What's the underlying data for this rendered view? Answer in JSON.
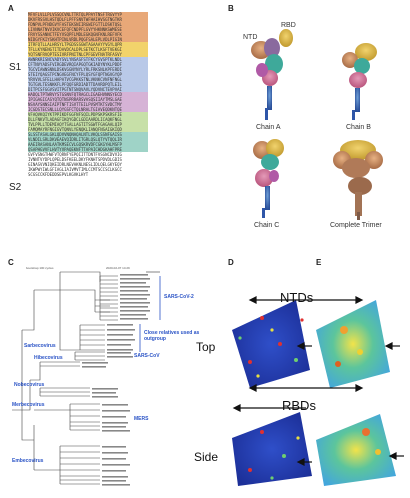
{
  "panels": {
    "a": "A",
    "b": "B",
    "c": "C",
    "d": "D",
    "e": "E"
  },
  "panel_a": {
    "segments": [
      "S1",
      "S2"
    ],
    "sequence_lines": [
      "MFVFLVLLPLVSSQCVNLTTRTQLPPAYTNSFTRGVYYP",
      "DKVFRSSVLHSTQDLFLPFFSNVTWFHAIHVSGTNGTKR",
      "FDNPVLPFNDGVYFASTEKSNIIRGWIFGTTLDSKTQSL",
      "LIVNNATNVVIKVCEFQFCNDPFLGVYYHKNNKSWMESE",
      "FRVYSSANNCTFEYVSQPFLMDLEGKQGNFKNLREFVFK",
      "NIDGYFKIYSKHTPINLVRDLPQGFSALEPLVDLPIGIN",
      "ITRFQTLLALHRSYLTPGDSSSGWTAGAAAYYVGYLQPR",
      "TFLLKYNENGTITDAVDCALDPLSETKCTLKSFTVEKGI",
      "YQTSNFRVQPTESIVRFPNITNLCPFGEVFNATRFASVY",
      "AWNRKRISNCVADYSVLYNSASFSTFKCYGVSPTKLNDL",
      "CFTNVYADSFVIRGDEVRQIAPGQTGKIADYNYKLPDDF",
      "TGCVIAWNSNNLDSKVGGNYNYLYRLFRKSNLKPFERDI",
      "STEIYQAGSTPCNGVEGFNCYFPLQSYGFQPTNGVGYQP",
      "YRVVVLSFELLHAPATVCGPKKSTNLVKNKCVNFNFNGL",
      "TGTGVLTESNKKFLPFQQFGRDIADTTDAVRDPQTLEIL",
      "DITPCSFGGVSVITPGTNTSNQVAVLYQDVNCTEVPVAI",
      "HADQLTPTWRVYSTGSNVFQTRAGCLIGAEHVNNSYECD",
      "IPIGAGICASYQTQTNSPRRARSVASQSIIAYTMSLGAE",
      "NSVAYSNNSIAIPTNFTISVTTEILPVSMTKTSVDCTMY",
      "ICGDSTECSNLLLQYGSFCTQLNRALTGIAVEQDKNTQE",
      "VFAQVKQIYKTPPIKDFGGFNFSQILPDPSKPSKRSFIE",
      "DLLFNKVTLADAGFIKQYGDCLGDIAARDLICAQKFNGL",
      "TVLPPLLTDEMIAQYTSALLAGTITSGWTFGAGAALQIP",
      "FAMQMAYRFNGIGVTQNVLYENQKLIANQFNSAIGKIQD",
      "SLSSTASALGKLQDVVNQNAQALNTLVKQLSSNFGAISS",
      "VLNDILSRLDKVEAEVQIDRLITGRLQSLQTYVTQQLIR",
      "AAEIRASANLAATKMSECVLGQSKRVDFCGKGYHLMSFP",
      "QSAPHGVVFLHVTYVPAQEKNFTTAPAICHDGKAHFPRE",
      "GVFVSNGTHWFVTQRNFYEPQIITTDNTFVSGNCDVVIG",
      "IVNNTVYDPLQPELDSFKEELDKYFKNHTSPDVDLGDIS",
      "GINASVVNIQKEIDRLNEVAKNLNESLIDLQELGKYEQY",
      "IKWPWYIWLGFIAGLIAIVMVTIMLCCMTSCCSCLKGCC",
      "SCGSCCKFDEDDSEPVLKGVKLHYT"
    ],
    "colors": {
      "ntd": "#e8a878",
      "rbd": "#f2d36b",
      "sd": "#b9c9e8",
      "s2a": "#c7e0a8",
      "s2b": "#d6b3d6",
      "hr": "#9fd3c7"
    }
  },
  "panel_b": {
    "labels": {
      "ntd": "NTD",
      "rbd": "RBD",
      "chain_a": "Chain A",
      "chain_b": "Chain B",
      "chain_c": "Chain C",
      "trimer": "Complete Trimer"
    }
  },
  "panel_c": {
    "header_left": "bootstrap 100 cycles",
    "header_right": "2020-02-07 14:29",
    "clades": [
      {
        "name": "SARS-CoV-2",
        "color": "#2a53c6"
      },
      {
        "name": "Close relatives used as outgroup",
        "color": "#2a53c6"
      },
      {
        "name": "SARS-CoV",
        "color": "#2a53c6"
      },
      {
        "name": "Sarbecovirus",
        "color": "#2a53c6"
      },
      {
        "name": "Hibecovirus",
        "color": "#2a53c6"
      },
      {
        "name": "Nobecovirus",
        "color": "#2a53c6"
      },
      {
        "name": "Merbecovirus",
        "color": "#2a53c6"
      },
      {
        "name": "MERS",
        "color": "#2a53c6"
      },
      {
        "name": "Embecovirus",
        "color": "#2a53c6"
      }
    ]
  },
  "panel_de": {
    "ntds": "NTDs",
    "rbds": "RBDs",
    "top": "Top",
    "side": "Side"
  }
}
